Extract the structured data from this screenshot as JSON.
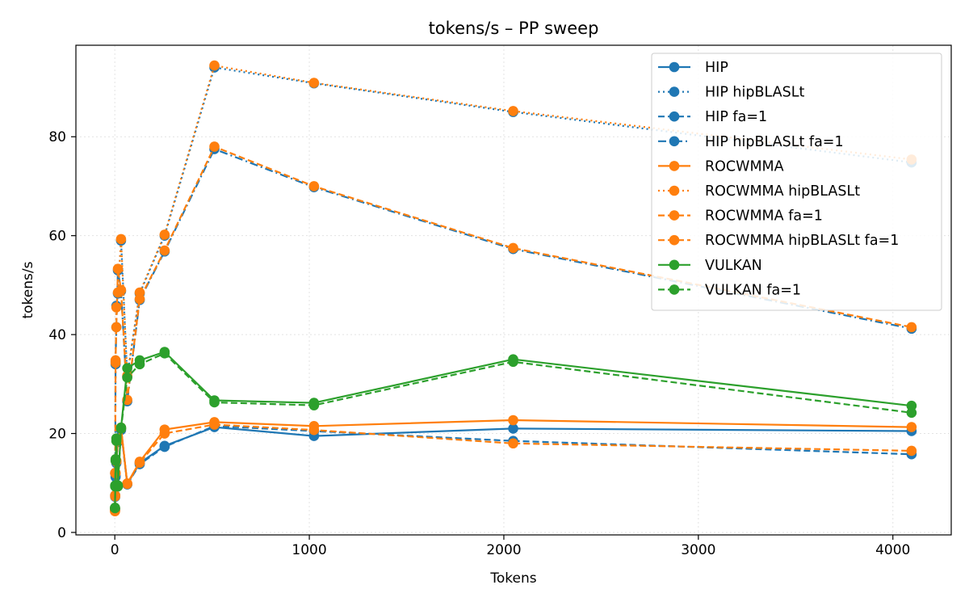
{
  "chart_data": {
    "type": "line",
    "title": "tokens/s – PP sweep",
    "xlabel": "Tokens",
    "ylabel": "tokens/s",
    "xlim": [
      -200,
      4300
    ],
    "ylim": [
      -0.5,
      98.5
    ],
    "xticks": [
      0,
      1000,
      2000,
      3000,
      4000
    ],
    "yticks": [
      0,
      20,
      40,
      60,
      80
    ],
    "grid": true,
    "legend_position": "top-right",
    "series": [
      {
        "name": "HIP",
        "color": "#1f77b4",
        "dash": "solid",
        "x": [
          1,
          2,
          4,
          8,
          16,
          32,
          64,
          128,
          256,
          512,
          1024,
          2048,
          4096
        ],
        "y": [
          4.5,
          7.5,
          11.5,
          14.2,
          18.5,
          21.0,
          9.8,
          14.0,
          17.5,
          21.3,
          19.5,
          21.0,
          20.5
        ]
      },
      {
        "name": "HIP hipBLASLt",
        "color": "#1f77b4",
        "dash": "dotted",
        "x": [
          1,
          2,
          4,
          8,
          16,
          32,
          64,
          128,
          256,
          512,
          1024,
          2048,
          4096
        ],
        "y": [
          4.8,
          12.0,
          34.0,
          45.8,
          48.3,
          59.0,
          31.5,
          48.3,
          60.0,
          94.0,
          90.8,
          85.0,
          74.8
        ]
      },
      {
        "name": "HIP fa=1",
        "color": "#1f77b4",
        "dash": "dashed",
        "x": [
          1,
          2,
          4,
          8,
          16,
          32,
          64,
          128,
          256,
          512,
          1024,
          2048,
          4096
        ],
        "y": [
          4.5,
          7.2,
          11.2,
          14.0,
          18.3,
          20.7,
          9.7,
          13.8,
          17.3,
          21.5,
          20.5,
          18.5,
          15.8
        ]
      },
      {
        "name": "HIP hipBLASLt fa=1",
        "color": "#1f77b4",
        "dash": "dashdot",
        "x": [
          1,
          2,
          4,
          8,
          16,
          32,
          64,
          128,
          256,
          512,
          1024,
          2048,
          4096
        ],
        "y": [
          4.8,
          12.0,
          34.5,
          41.5,
          53.0,
          48.8,
          26.5,
          47.0,
          56.8,
          77.5,
          69.8,
          57.3,
          41.2
        ]
      },
      {
        "name": "ROCWMMA",
        "color": "#ff7f0e",
        "dash": "solid",
        "x": [
          1,
          2,
          4,
          8,
          16,
          32,
          64,
          128,
          256,
          512,
          1024,
          2048,
          4096
        ],
        "y": [
          4.3,
          7.5,
          12.0,
          14.5,
          18.7,
          21.2,
          9.9,
          14.3,
          20.8,
          22.3,
          21.5,
          22.7,
          21.3
        ]
      },
      {
        "name": "ROCWMMA hipBLASLt",
        "color": "#ff7f0e",
        "dash": "dotted",
        "x": [
          1,
          2,
          4,
          8,
          16,
          32,
          64,
          128,
          256,
          512,
          1024,
          2048,
          4096
        ],
        "y": [
          4.8,
          12.0,
          34.3,
          45.5,
          48.5,
          59.3,
          31.7,
          48.5,
          60.2,
          94.4,
          90.9,
          85.2,
          75.4
        ]
      },
      {
        "name": "ROCWMMA fa=1",
        "color": "#ff7f0e",
        "dash": "dashed",
        "x": [
          1,
          2,
          4,
          8,
          16,
          32,
          64,
          128,
          256,
          512,
          1024,
          2048,
          4096
        ],
        "y": [
          4.3,
          7.3,
          12.0,
          14.3,
          18.5,
          21.0,
          9.8,
          14.1,
          20.0,
          21.8,
          20.7,
          18.0,
          16.5
        ]
      },
      {
        "name": "ROCWMMA hipBLASLt fa=1",
        "color": "#ff7f0e",
        "dash": "dashed",
        "x": [
          1,
          2,
          4,
          8,
          16,
          32,
          64,
          128,
          256,
          512,
          1024,
          2048,
          4096
        ],
        "y": [
          4.8,
          12.0,
          34.8,
          41.5,
          53.3,
          49.0,
          26.8,
          47.2,
          57.0,
          78.0,
          70.0,
          57.5,
          41.5
        ]
      },
      {
        "name": "VULKAN",
        "color": "#2ca02c",
        "dash": "solid",
        "x": [
          1,
          2,
          4,
          8,
          16,
          32,
          64,
          128,
          256,
          512,
          1024,
          2048,
          4096
        ],
        "y": [
          5.0,
          9.5,
          14.8,
          18.5,
          9.5,
          21.2,
          33.2,
          34.8,
          36.5,
          26.7,
          26.2,
          35.0,
          25.6
        ]
      },
      {
        "name": "VULKAN fa=1",
        "color": "#2ca02c",
        "dash": "dashed",
        "x": [
          1,
          2,
          4,
          8,
          16,
          32,
          64,
          128,
          256,
          512,
          1024,
          2048,
          4096
        ],
        "y": [
          4.9,
          9.3,
          14.5,
          19.0,
          9.3,
          21.0,
          31.3,
          34.0,
          36.2,
          26.3,
          25.7,
          34.5,
          24.2
        ]
      }
    ]
  }
}
